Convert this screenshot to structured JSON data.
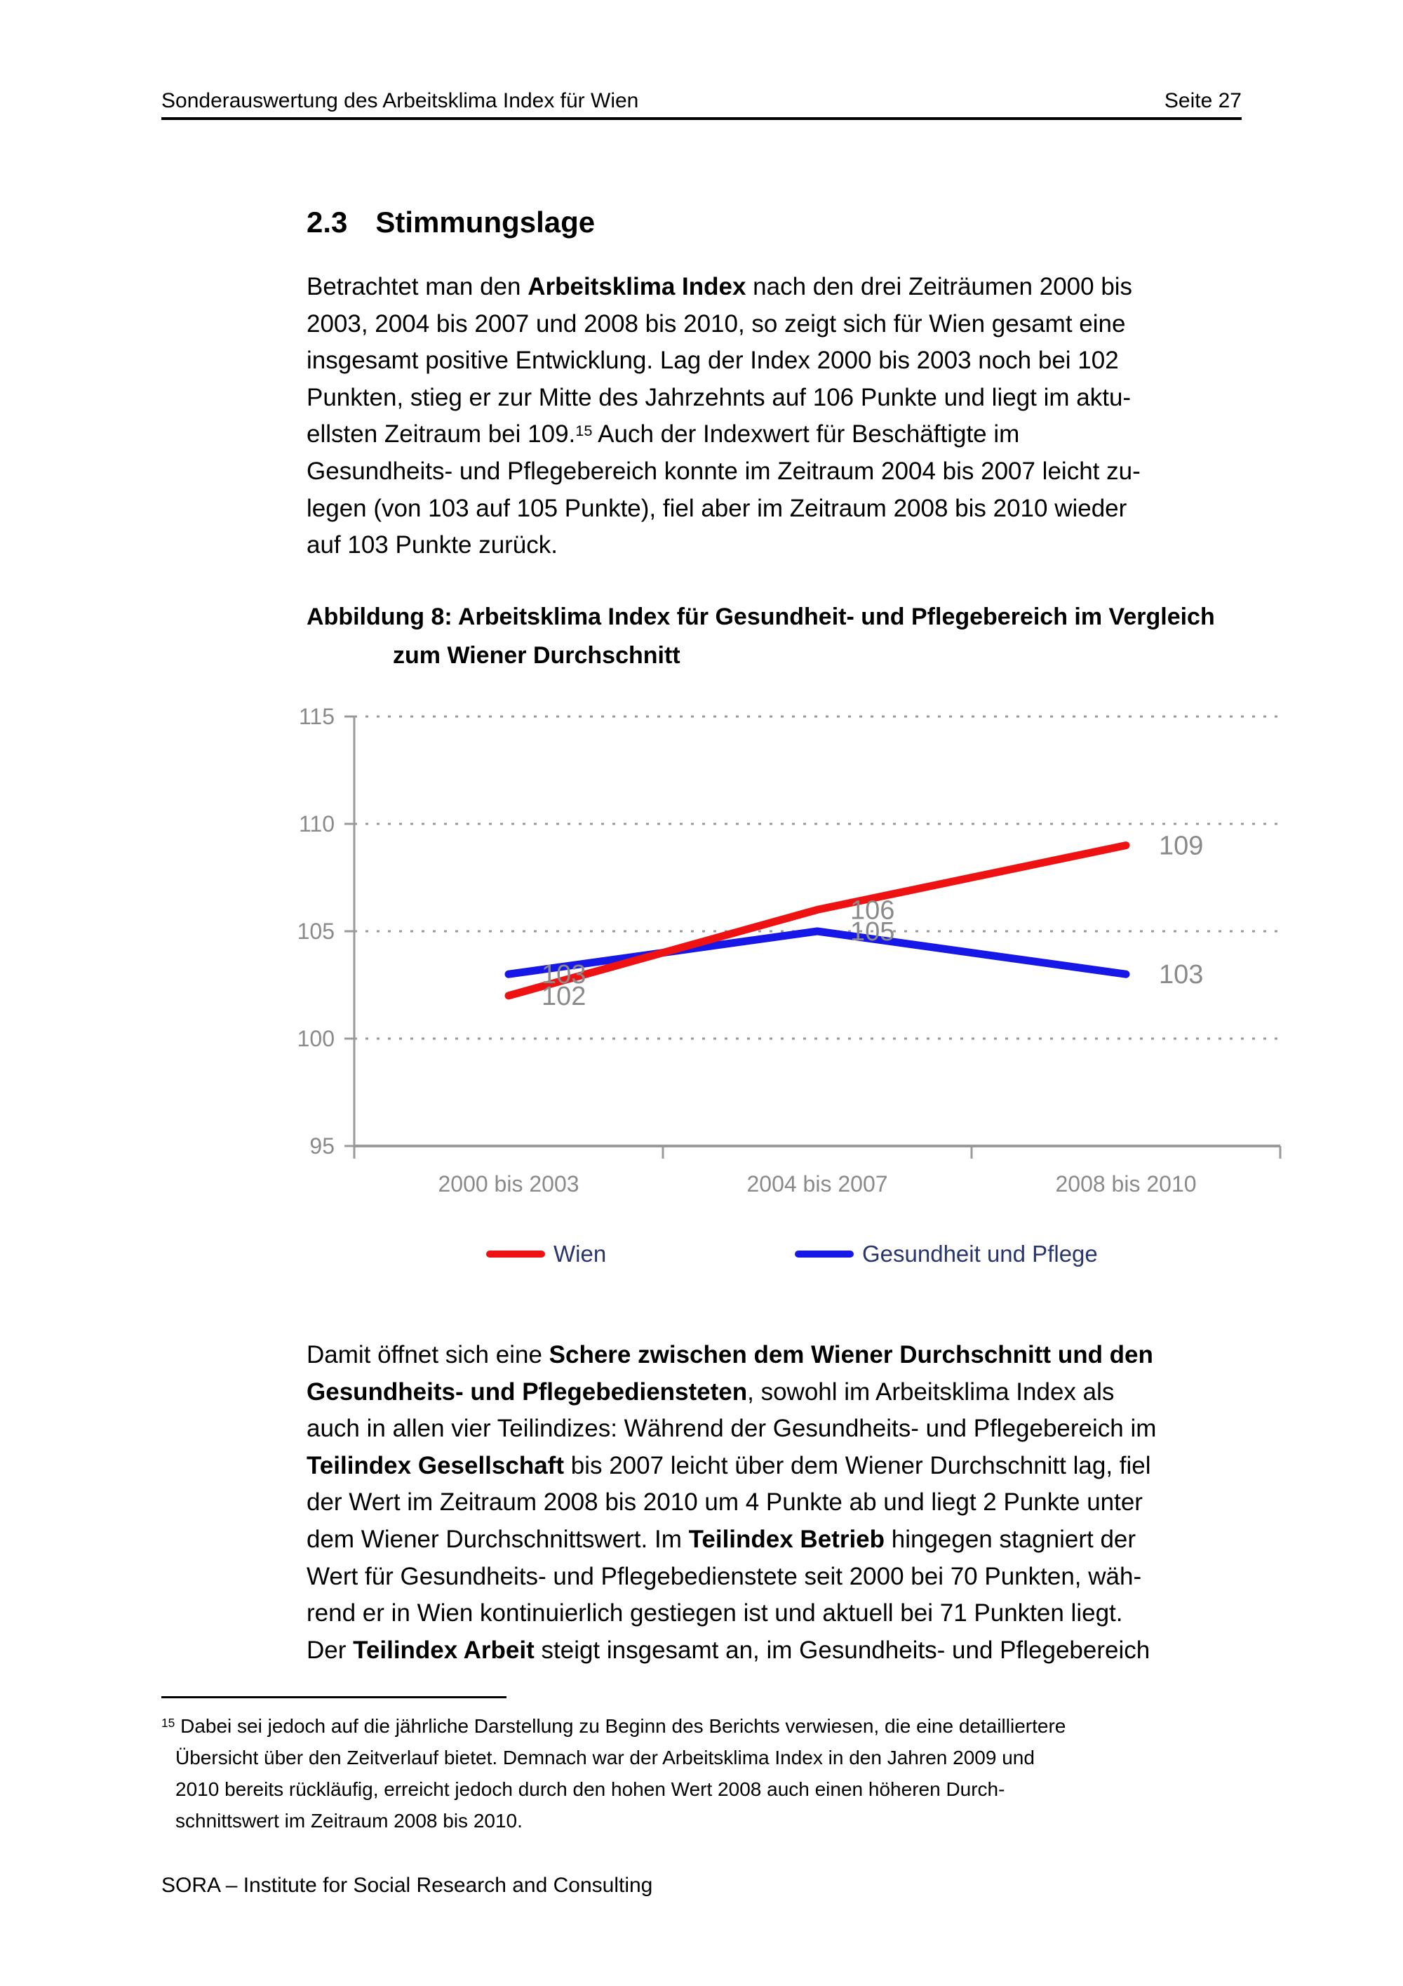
{
  "header": {
    "title": "Sonderauswertung des Arbeitsklima Index für Wien",
    "page_label": "Seite 27"
  },
  "section": {
    "number": "2.3",
    "title": "Stimmungslage"
  },
  "paragraph1": {
    "lines": [
      [
        {
          "t": "Betrachtet man den "
        },
        {
          "t": "Arbeitsklima Index",
          "b": true
        },
        {
          "t": " nach den drei Zeiträumen 2000 bis"
        }
      ],
      [
        {
          "t": "2003, 2004 bis 2007 und 2008 bis 2010, so zeigt sich für Wien gesamt eine"
        }
      ],
      [
        {
          "t": "insgesamt positive Entwicklung. Lag der Index 2000 bis 2003 noch bei 102"
        }
      ],
      [
        {
          "t": "Punkten, stieg er zur Mitte des Jahrzehnts auf 106 Punkte und liegt im aktu-"
        }
      ],
      [
        {
          "t": "ellsten Zeitraum bei 109."
        },
        {
          "t": "15",
          "sup": true
        },
        {
          "t": " Auch der Indexwert für Beschäftigte im"
        }
      ],
      [
        {
          "t": "Gesundheits- und Pflegebereich konnte im Zeitraum 2004 bis 2007 leicht zu-"
        }
      ],
      [
        {
          "t": "legen (von 103 auf 105 Punkte), fiel aber im Zeitraum 2008 bis 2010 wieder"
        }
      ],
      [
        {
          "t": "auf 103 Punkte zurück."
        }
      ]
    ]
  },
  "figure_caption": {
    "line1": "Abbildung 8: Arbeitsklima Index für Gesundheit- und Pflegebereich im Vergleich",
    "line2": "zum Wiener Durchschnitt"
  },
  "chart_data": {
    "type": "line",
    "title": "Arbeitsklima Index für Gesundheit- und Pflegebereich im Vergleich zum Wiener Durchschnitt",
    "categories": [
      "2000 bis 2003",
      "2004 bis 2007",
      "2008 bis 2010"
    ],
    "series": [
      {
        "name": "Wien",
        "color": "#ee1212",
        "values": [
          102,
          106,
          109
        ]
      },
      {
        "name": "Gesundheit und Pflege",
        "color": "#1717e8",
        "values": [
          103,
          105,
          103
        ]
      }
    ],
    "ylim": [
      95,
      115
    ],
    "yticks": [
      95,
      100,
      105,
      110,
      115
    ],
    "grid": "horizontal dotted at 100/105/110/115",
    "legend_position": "bottom",
    "axis_color": "#9a9a9a",
    "grid_color": "#9a9a9a",
    "tick_label_color": "#8a8a8a",
    "value_label_color": "#8a8a8a",
    "legend_text_color": "#28356e"
  },
  "paragraph2": {
    "lines": [
      [
        {
          "t": "Damit öffnet sich eine "
        },
        {
          "t": "Schere zwischen dem Wiener Durchschnitt und den",
          "b": true
        }
      ],
      [
        {
          "t": "Gesundheits- und Pflegebediensteten",
          "b": true
        },
        {
          "t": ", sowohl im Arbeitsklima Index als"
        }
      ],
      [
        {
          "t": "auch in allen vier Teilindizes: Während der Gesundheits- und Pflegebereich im"
        }
      ],
      [
        {
          "t": "Teilindex Gesellschaft",
          "b": true
        },
        {
          "t": " bis 2007 leicht über dem Wiener Durchschnitt lag, fiel"
        }
      ],
      [
        {
          "t": "der Wert im Zeitraum 2008 bis 2010 um 4 Punkte ab und liegt 2 Punkte unter"
        }
      ],
      [
        {
          "t": "dem Wiener Durchschnittswert. Im "
        },
        {
          "t": "Teilindex Betrieb",
          "b": true
        },
        {
          "t": " hingegen stagniert der"
        }
      ],
      [
        {
          "t": "Wert für Gesundheits- und Pflegebedienstete seit 2000 bei 70 Punkten, wäh-"
        }
      ],
      [
        {
          "t": "rend er in Wien kontinuierlich gestiegen ist und aktuell bei 71 Punkten liegt."
        }
      ],
      [
        {
          "t": "Der "
        },
        {
          "t": "Teilindex Arbeit",
          "b": true
        },
        {
          "t": " steigt insgesamt an, im Gesundheits- und Pflegebereich"
        }
      ]
    ]
  },
  "footnote": {
    "lines": [
      [
        {
          "t": "15",
          "sup": true
        },
        {
          "t": " Dabei sei jedoch auf die jährliche Darstellung zu Beginn des Berichts verwiesen, die eine detailliertere"
        }
      ],
      [
        {
          "t": "Übersicht über den Zeitverlauf bietet. Demnach war der Arbeitsklima Index in den Jahren 2009 und"
        }
      ],
      [
        {
          "t": "2010 bereits rückläufig, erreicht jedoch durch den hohen Wert 2008 auch einen höheren Durch-"
        }
      ],
      [
        {
          "t": "schnittswert im Zeitraum 2008 bis 2010."
        }
      ]
    ]
  },
  "footer": {
    "text": "SORA – Institute for Social Research and Consulting"
  }
}
